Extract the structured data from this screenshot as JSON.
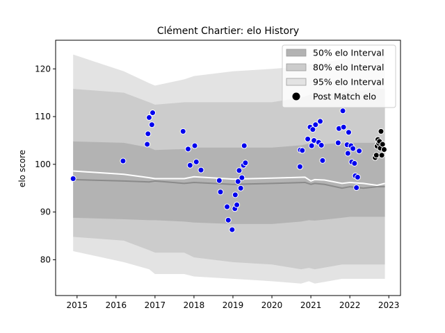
{
  "chart_data": {
    "type": "scatter",
    "title": "Clément Chartier: elo History",
    "xlabel": "",
    "ylabel": "elo score",
    "xlim": [
      2014.45,
      2023.3
    ],
    "ylim": [
      72.5,
      126
    ],
    "x_ticks": [
      2015,
      2016,
      2017,
      2018,
      2019,
      2020,
      2021,
      2022,
      2023
    ],
    "y_ticks": [
      80,
      90,
      100,
      110,
      120
    ],
    "grid": false,
    "legend_position": "top-right",
    "legend": [
      {
        "label": "50% elo Interval",
        "kind": "band",
        "color": "#b3b3b3"
      },
      {
        "label": "80% elo Interval",
        "kind": "band",
        "color": "#cccccc"
      },
      {
        "label": "95% elo Interval",
        "kind": "band",
        "color": "#e3e3e3"
      },
      {
        "label": "Post Match elo",
        "kind": "marker",
        "color": "#000000"
      }
    ],
    "bands": {
      "x": [
        2014.9,
        2016.2,
        2016.85,
        2017.0,
        2017.75,
        2018.0,
        2019.0,
        2020.0,
        2020.75,
        2020.95,
        2021.1,
        2021.45,
        2021.8,
        2022.0,
        2022.35,
        2022.7,
        2022.9
      ],
      "p95_hi": [
        123.0,
        119.5,
        117.0,
        116.5,
        117.8,
        118.5,
        119.5,
        120.0,
        120.5,
        121.0,
        121.0,
        121.5,
        122.0,
        122.5,
        122.8,
        123.0,
        123.0
      ],
      "p80_hi": [
        115.8,
        115.0,
        113.0,
        112.5,
        113.0,
        113.0,
        113.0,
        113.0,
        114.0,
        114.5,
        114.8,
        114.8,
        115.0,
        115.5,
        115.5,
        115.8,
        115.8
      ],
      "p50_hi": [
        104.8,
        104.5,
        103.5,
        103.0,
        103.2,
        103.5,
        103.5,
        103.5,
        104.0,
        104.3,
        104.0,
        104.3,
        104.5,
        104.5,
        104.5,
        104.5,
        104.5
      ],
      "p50_lo": [
        88.8,
        88.5,
        88.3,
        88.3,
        88.0,
        87.8,
        87.5,
        87.5,
        88.0,
        88.3,
        88.2,
        88.5,
        88.8,
        89.0,
        89.0,
        89.0,
        89.0
      ],
      "p80_lo": [
        84.8,
        84.0,
        82.0,
        81.5,
        81.5,
        80.5,
        79.5,
        79.0,
        78.0,
        78.3,
        78.0,
        78.5,
        79.0,
        79.0,
        79.0,
        79.0,
        79.0
      ],
      "p95_lo": [
        81.8,
        79.5,
        78.0,
        77.0,
        77.0,
        76.5,
        76.0,
        75.5,
        75.0,
        75.5,
        75.0,
        75.5,
        76.0,
        76.0,
        76.0,
        76.0,
        76.0
      ]
    },
    "mean_line": {
      "x": [
        2014.9,
        2016.2,
        2016.85,
        2017.0,
        2017.75,
        2018.0,
        2019.0,
        2020.0,
        2020.85,
        2021.0,
        2021.1,
        2021.35,
        2021.8,
        2022.0,
        2022.35,
        2022.7,
        2022.9
      ],
      "y": [
        96.8,
        96.5,
        96.3,
        96.5,
        96.0,
        96.2,
        95.8,
        96.0,
        96.2,
        95.8,
        96.0,
        95.8,
        95.0,
        95.3,
        95.0,
        95.3,
        95.3
      ]
    },
    "median_line": {
      "x": [
        2014.9,
        2016.2,
        2016.85,
        2017.0,
        2017.75,
        2018.0,
        2019.0,
        2020.0,
        2020.85,
        2021.0,
        2021.1,
        2021.35,
        2021.8,
        2022.0,
        2022.35,
        2022.7,
        2022.9
      ],
      "y": [
        98.6,
        97.9,
        97.2,
        97.0,
        97.0,
        97.4,
        96.9,
        97.1,
        97.3,
        96.5,
        96.8,
        96.7,
        96.0,
        96.2,
        96.0,
        95.6,
        96.0
      ]
    },
    "series": [
      {
        "name": "Post Match elo",
        "color": "#0000ee",
        "points": [
          [
            2014.9,
            97.0
          ],
          [
            2016.18,
            100.7
          ],
          [
            2016.8,
            104.2
          ],
          [
            2016.82,
            106.4
          ],
          [
            2016.85,
            109.8
          ],
          [
            2016.92,
            108.3
          ],
          [
            2016.94,
            110.8
          ],
          [
            2017.72,
            106.9
          ],
          [
            2017.85,
            103.2
          ],
          [
            2017.9,
            99.8
          ],
          [
            2018.02,
            103.9
          ],
          [
            2018.06,
            100.5
          ],
          [
            2018.18,
            98.8
          ],
          [
            2018.65,
            96.6
          ],
          [
            2018.68,
            94.2
          ],
          [
            2018.85,
            91.1
          ],
          [
            2018.88,
            88.3
          ],
          [
            2018.98,
            86.3
          ],
          [
            2019.05,
            90.7
          ],
          [
            2019.06,
            93.6
          ],
          [
            2019.1,
            91.5
          ],
          [
            2019.13,
            96.4
          ],
          [
            2019.16,
            98.7
          ],
          [
            2019.2,
            95.0
          ],
          [
            2019.23,
            97.2
          ],
          [
            2019.27,
            99.8
          ],
          [
            2019.29,
            103.9
          ],
          [
            2019.32,
            100.3
          ],
          [
            2020.72,
            99.5
          ],
          [
            2020.73,
            103.0
          ],
          [
            2020.78,
            102.9
          ],
          [
            2020.92,
            105.3
          ],
          [
            2020.98,
            107.8
          ],
          [
            2021.02,
            103.9
          ],
          [
            2021.05,
            107.3
          ],
          [
            2021.08,
            105.0
          ],
          [
            2021.12,
            108.3
          ],
          [
            2021.2,
            104.6
          ],
          [
            2021.24,
            109.0
          ],
          [
            2021.27,
            104.0
          ],
          [
            2021.3,
            100.8
          ],
          [
            2021.7,
            104.5
          ],
          [
            2021.72,
            107.5
          ],
          [
            2021.82,
            111.2
          ],
          [
            2021.84,
            107.8
          ],
          [
            2021.93,
            104.1
          ],
          [
            2021.95,
            102.3
          ],
          [
            2021.97,
            106.7
          ],
          [
            2022.03,
            103.9
          ],
          [
            2022.05,
            100.5
          ],
          [
            2022.08,
            103.3
          ],
          [
            2022.12,
            100.2
          ],
          [
            2022.14,
            97.6
          ],
          [
            2022.17,
            95.1
          ],
          [
            2022.2,
            97.3
          ],
          [
            2022.24,
            102.8
          ]
        ]
      },
      {
        "name": "Post Match elo",
        "color": "#000000",
        "points": [
          [
            2022.65,
            101.4
          ],
          [
            2022.68,
            101.9
          ],
          [
            2022.7,
            103.8
          ],
          [
            2022.72,
            105.2
          ],
          [
            2022.74,
            104.4
          ],
          [
            2022.76,
            104.8
          ],
          [
            2022.78,
            103.4
          ],
          [
            2022.8,
            106.9
          ],
          [
            2022.82,
            101.9
          ],
          [
            2022.84,
            104.2
          ],
          [
            2022.88,
            103.1
          ]
        ]
      }
    ]
  }
}
